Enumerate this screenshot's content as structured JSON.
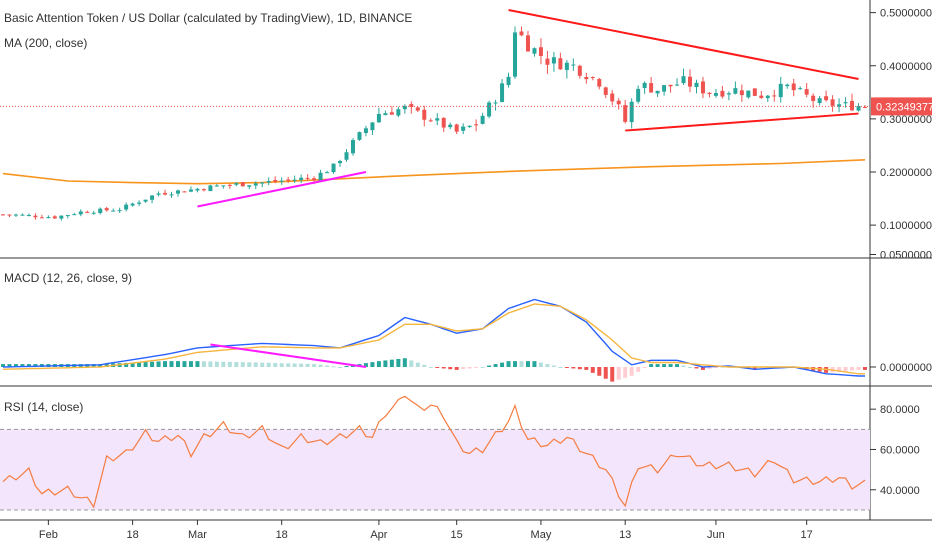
{
  "header": {
    "title": "Basic Attention Token / US Dollar (calculated by TradingView), 1D, BINANCE",
    "ma_label": "MA (200, close)",
    "macd_label": "MACD (12, 26, close, 9)",
    "rsi_label": "RSI (14, close)"
  },
  "colors": {
    "up": "#26a69a",
    "down": "#ef5350",
    "ma": "#f7941d",
    "macd_line": "#2962ff",
    "signal_line": "#f5b53f",
    "hist_pos_strong": "#26a69a",
    "hist_pos_weak": "#b2dfdb",
    "hist_neg_strong": "#ef5350",
    "hist_neg_weak": "#ffcdd2",
    "rsi_line": "#f57c41",
    "rsi_band": "#f3e5fb",
    "trend_red": "#ff1a1a",
    "trend_magenta": "#ff1aff"
  },
  "chart_data": [
    {
      "type": "candlestick",
      "title": "Basic Attention Token / US Dollar (calculated by TradingView), 1D, BINANCE",
      "overlay": "MA (200, close)",
      "y_ticks": [
        "0.50000000",
        "0.40000000",
        "0.30000000",
        "0.20000000",
        "0.10000000"
      ],
      "ylim": [
        0.04,
        0.52
      ],
      "last_price": "0.32349377",
      "close_path": [
        [
          1,
          0.12
        ],
        [
          8,
          0.115
        ],
        [
          12,
          0.125
        ],
        [
          18,
          0.13
        ],
        [
          20,
          0.14
        ],
        [
          24,
          0.16
        ],
        [
          28,
          0.165
        ],
        [
          34,
          0.175
        ],
        [
          40,
          0.18
        ],
        [
          44,
          0.185
        ],
        [
          48,
          0.19
        ],
        [
          51,
          0.21
        ],
        [
          54,
          0.255
        ],
        [
          58,
          0.31
        ],
        [
          62,
          0.32
        ],
        [
          66,
          0.3
        ],
        [
          70,
          0.275
        ],
        [
          73,
          0.29
        ],
        [
          76,
          0.34
        ],
        [
          78,
          0.38
        ],
        [
          79,
          0.47
        ],
        [
          81,
          0.44
        ],
        [
          84,
          0.41
        ],
        [
          88,
          0.4
        ],
        [
          92,
          0.37
        ],
        [
          95,
          0.32
        ],
        [
          96,
          0.295
        ],
        [
          98,
          0.365
        ],
        [
          101,
          0.355
        ],
        [
          105,
          0.37
        ],
        [
          109,
          0.35
        ],
        [
          113,
          0.355
        ],
        [
          117,
          0.345
        ],
        [
          121,
          0.36
        ],
        [
          126,
          0.33
        ],
        [
          130,
          0.325
        ],
        [
          133,
          0.325
        ]
      ],
      "ma200": [
        [
          0,
          0.197
        ],
        [
          10,
          0.183
        ],
        [
          20,
          0.18
        ],
        [
          30,
          0.178
        ],
        [
          40,
          0.18
        ],
        [
          50,
          0.186
        ],
        [
          60,
          0.192
        ],
        [
          70,
          0.197
        ],
        [
          80,
          0.202
        ],
        [
          90,
          0.206
        ],
        [
          100,
          0.21
        ],
        [
          110,
          0.213
        ],
        [
          120,
          0.216
        ],
        [
          133,
          0.223
        ]
      ],
      "trendlines": [
        {
          "color": "red",
          "from": [
            78,
            0.505
          ],
          "to": [
            132,
            0.375
          ]
        },
        {
          "color": "red",
          "from": [
            96,
            0.278
          ],
          "to": [
            132,
            0.31
          ]
        },
        {
          "color": "magenta",
          "from": [
            30,
            0.135
          ],
          "to": [
            56,
            0.2
          ]
        }
      ]
    },
    {
      "type": "line",
      "title": "MACD (12, 26, close, 9)",
      "y_ticks": [
        "0.05000000",
        "0.00000000"
      ],
      "ylim": [
        -0.008,
        0.048
      ],
      "macd": [
        [
          0,
          0.0
        ],
        [
          15,
          0.001
        ],
        [
          25,
          0.0055
        ],
        [
          30,
          0.0085
        ],
        [
          40,
          0.0105
        ],
        [
          48,
          0.0095
        ],
        [
          52,
          0.0085
        ],
        [
          58,
          0.014
        ],
        [
          62,
          0.022
        ],
        [
          66,
          0.019
        ],
        [
          70,
          0.015
        ],
        [
          74,
          0.017
        ],
        [
          78,
          0.026
        ],
        [
          82,
          0.03
        ],
        [
          86,
          0.027
        ],
        [
          90,
          0.02
        ],
        [
          94,
          0.007
        ],
        [
          97,
          0.001
        ],
        [
          100,
          0.003
        ],
        [
          104,
          0.003
        ],
        [
          108,
          0.0
        ],
        [
          112,
          0.0005
        ],
        [
          116,
          -0.001
        ],
        [
          122,
          0.0
        ],
        [
          127,
          -0.003
        ],
        [
          132,
          -0.004
        ]
      ],
      "signal": [
        [
          0,
          -0.001
        ],
        [
          15,
          0.0
        ],
        [
          25,
          0.0035
        ],
        [
          30,
          0.0065
        ],
        [
          40,
          0.009
        ],
        [
          48,
          0.0085
        ],
        [
          52,
          0.0085
        ],
        [
          58,
          0.012
        ],
        [
          62,
          0.019
        ],
        [
          66,
          0.019
        ],
        [
          70,
          0.016
        ],
        [
          74,
          0.017
        ],
        [
          78,
          0.024
        ],
        [
          82,
          0.028
        ],
        [
          86,
          0.027
        ],
        [
          90,
          0.021
        ],
        [
          94,
          0.012
        ],
        [
          97,
          0.004
        ],
        [
          100,
          0.002
        ],
        [
          104,
          0.002
        ],
        [
          108,
          0.001
        ],
        [
          112,
          0.0
        ],
        [
          116,
          0.0
        ],
        [
          122,
          0.0
        ],
        [
          127,
          -0.001
        ],
        [
          132,
          -0.003
        ]
      ],
      "trendline": {
        "color": "magenta",
        "from": [
          32,
          0.01
        ],
        "to": [
          56,
          0.0
        ]
      }
    },
    {
      "type": "line",
      "title": "RSI (14, close)",
      "y_ticks": [
        "80.0000",
        "60.0000",
        "40.0000"
      ],
      "ylim": [
        26,
        91
      ],
      "band": [
        30,
        70
      ],
      "rsi": [
        [
          0,
          44
        ],
        [
          4,
          49
        ],
        [
          6,
          38
        ],
        [
          10,
          40
        ],
        [
          12,
          36
        ],
        [
          14,
          33
        ],
        [
          16,
          55
        ],
        [
          19,
          58
        ],
        [
          22,
          68
        ],
        [
          24,
          64
        ],
        [
          27,
          67
        ],
        [
          29,
          58
        ],
        [
          31,
          66
        ],
        [
          34,
          72
        ],
        [
          37,
          66
        ],
        [
          40,
          70
        ],
        [
          43,
          60
        ],
        [
          46,
          66
        ],
        [
          49,
          63
        ],
        [
          52,
          66
        ],
        [
          55,
          70
        ],
        [
          57,
          66
        ],
        [
          59,
          78
        ],
        [
          61,
          83
        ],
        [
          62,
          88
        ],
        [
          64,
          80
        ],
        [
          66,
          82
        ],
        [
          68,
          77
        ],
        [
          70,
          63
        ],
        [
          72,
          58
        ],
        [
          74,
          60
        ],
        [
          76,
          67
        ],
        [
          78,
          74
        ],
        [
          79,
          80
        ],
        [
          81,
          65
        ],
        [
          84,
          62
        ],
        [
          87,
          66
        ],
        [
          90,
          58
        ],
        [
          93,
          50
        ],
        [
          95,
          38
        ],
        [
          96,
          32
        ],
        [
          98,
          52
        ],
        [
          101,
          50
        ],
        [
          104,
          58
        ],
        [
          108,
          52
        ],
        [
          112,
          52
        ],
        [
          116,
          48
        ],
        [
          119,
          55
        ],
        [
          122,
          45
        ],
        [
          126,
          44
        ],
        [
          129,
          46
        ],
        [
          131,
          42
        ],
        [
          133,
          43
        ]
      ],
      "ref_lines": [
        30,
        70
      ]
    }
  ],
  "x_axis": {
    "ticks": [
      {
        "i": 7,
        "label": "Feb"
      },
      {
        "i": 20,
        "label": "18"
      },
      {
        "i": 30,
        "label": "Mar"
      },
      {
        "i": 43,
        "label": "18"
      },
      {
        "i": 58,
        "label": "Apr"
      },
      {
        "i": 70,
        "label": "15"
      },
      {
        "i": 83,
        "label": "May"
      },
      {
        "i": 96,
        "label": "13"
      },
      {
        "i": 110,
        "label": "Jun"
      },
      {
        "i": 124,
        "label": "17"
      }
    ]
  }
}
